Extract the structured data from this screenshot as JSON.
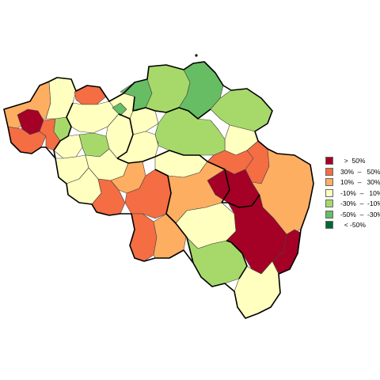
{
  "legend": {
    "entries": [
      {
        "label": "  >  50%",
        "color": "#a50026"
      },
      {
        "label": "30%  –   50%",
        "color": "#f46d43"
      },
      {
        "label": "10%  –   30%",
        "color": "#fdae61"
      },
      {
        "label": "-10%  –   10%",
        "color": "#ffffbf"
      },
      {
        "label": "-30%  –  -10%",
        "color": "#a6d96a"
      },
      {
        "label": "-50%  –  -30%",
        "color": "#66bd63"
      },
      {
        "label": "  < -50%",
        "color": "#006837"
      }
    ]
  }
}
